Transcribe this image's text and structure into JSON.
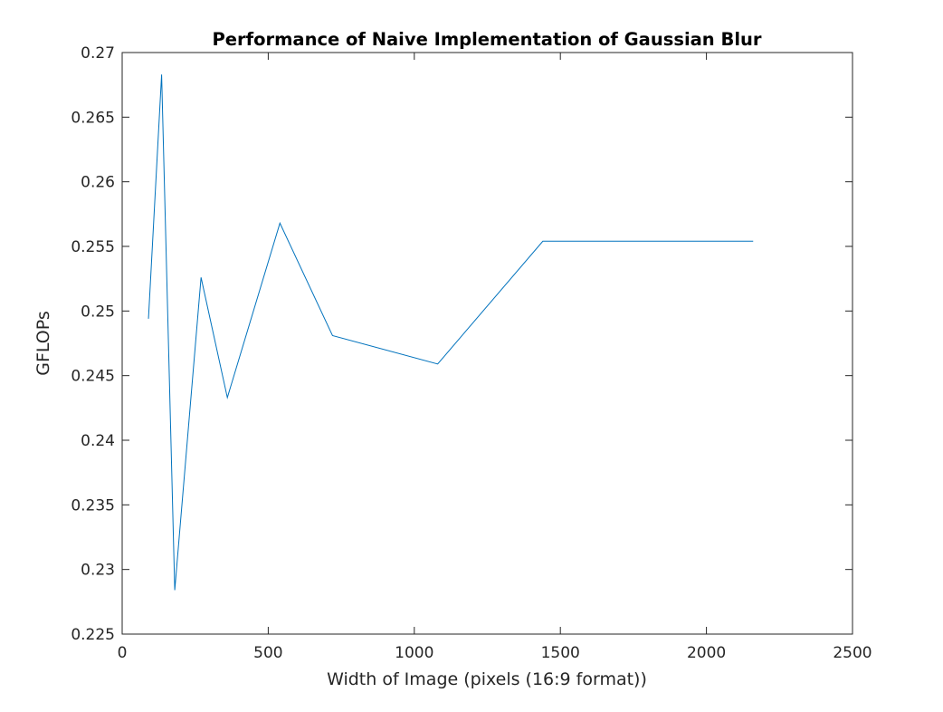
{
  "chart_data": {
    "type": "line",
    "title": "Performance of Naive Implementation of Gaussian Blur",
    "xlabel": "Width of Image (pixels (16:9 format))",
    "ylabel": "GFLOPs",
    "xlim": [
      0,
      2500
    ],
    "ylim": [
      0.225,
      0.27
    ],
    "xticks": [
      0,
      500,
      1000,
      1500,
      2000,
      2500
    ],
    "xtick_labels": [
      "0",
      "500",
      "1000",
      "1500",
      "2000",
      "2500"
    ],
    "yticks": [
      0.225,
      0.23,
      0.235,
      0.24,
      0.245,
      0.25,
      0.255,
      0.26,
      0.265,
      0.27
    ],
    "ytick_labels": [
      "0.225",
      "0.23",
      "0.235",
      "0.24",
      "0.245",
      "0.25",
      "0.255",
      "0.26",
      "0.265",
      "0.27"
    ],
    "grid": false,
    "series": [
      {
        "color": "#0072bd",
        "x": [
          90,
          135,
          180,
          270,
          360,
          540,
          720,
          1080,
          1440,
          2160
        ],
        "y": [
          0.2494,
          0.2683,
          0.2284,
          0.2526,
          0.2433,
          0.2568,
          0.2481,
          0.2459,
          0.2554,
          0.2554
        ]
      }
    ]
  }
}
